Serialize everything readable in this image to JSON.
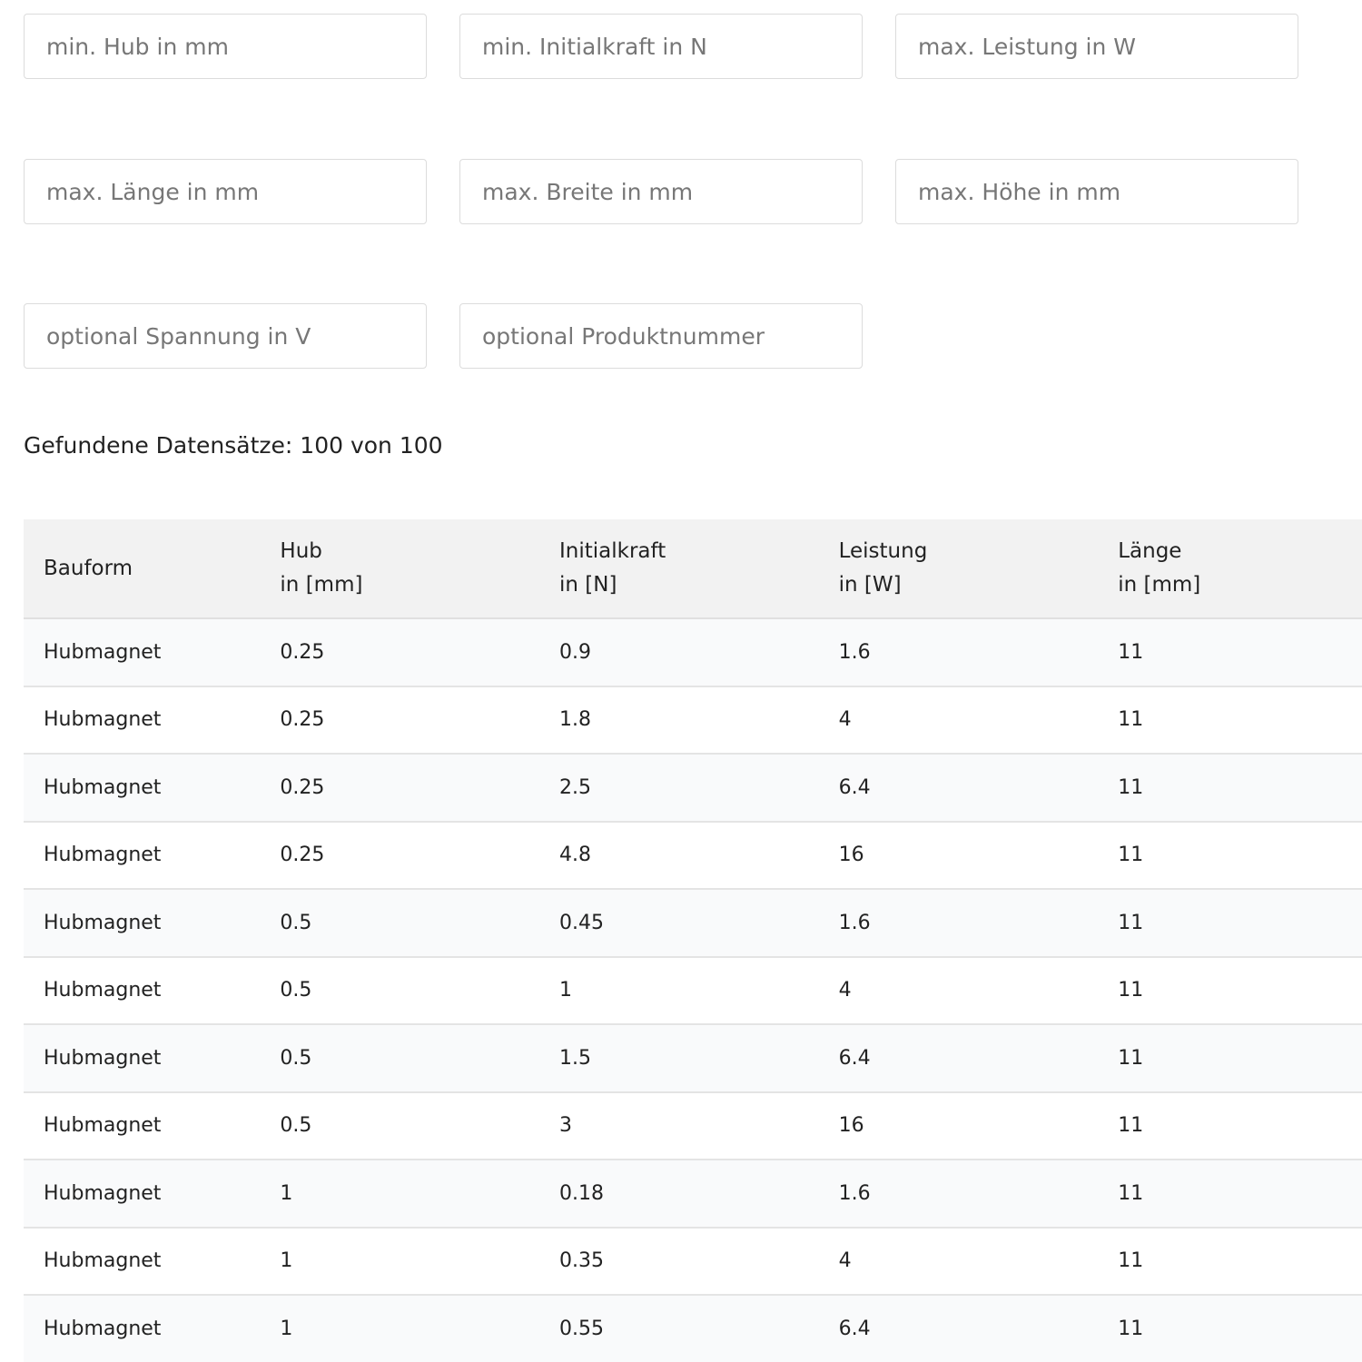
{
  "filters": [
    {
      "placeholder": "min. Hub in mm",
      "value": ""
    },
    {
      "placeholder": "min. Initialkraft in N",
      "value": ""
    },
    {
      "placeholder": "max. Leistung in W",
      "value": ""
    },
    {
      "placeholder": "max. Länge in mm",
      "value": ""
    },
    {
      "placeholder": "max. Breite in mm",
      "value": ""
    },
    {
      "placeholder": "max. Höhe in mm",
      "value": ""
    },
    {
      "placeholder": "optional Spannung in V",
      "value": ""
    },
    {
      "placeholder": "optional Produktnummer",
      "value": ""
    }
  ],
  "result_count": "Gefundene Datensätze: 100 von 100",
  "table": {
    "headers": [
      "Bauform",
      "Hub\nin [mm]",
      "Initialkraft\nin [N]",
      "Leistung\nin [W]",
      "Länge\nin [mm]"
    ],
    "rows": [
      [
        "Hubmagnet",
        "0.25",
        "0.9",
        "1.6",
        "11"
      ],
      [
        "Hubmagnet",
        "0.25",
        "1.8",
        "4",
        "11"
      ],
      [
        "Hubmagnet",
        "0.25",
        "2.5",
        "6.4",
        "11"
      ],
      [
        "Hubmagnet",
        "0.25",
        "4.8",
        "16",
        "11"
      ],
      [
        "Hubmagnet",
        "0.5",
        "0.45",
        "1.6",
        "11"
      ],
      [
        "Hubmagnet",
        "0.5",
        "1",
        "4",
        "11"
      ],
      [
        "Hubmagnet",
        "0.5",
        "1.5",
        "6.4",
        "11"
      ],
      [
        "Hubmagnet",
        "0.5",
        "3",
        "16",
        "11"
      ],
      [
        "Hubmagnet",
        "1",
        "0.18",
        "1.6",
        "11"
      ],
      [
        "Hubmagnet",
        "1",
        "0.35",
        "4",
        "11"
      ],
      [
        "Hubmagnet",
        "1",
        "0.55",
        "6.4",
        "11"
      ]
    ]
  }
}
